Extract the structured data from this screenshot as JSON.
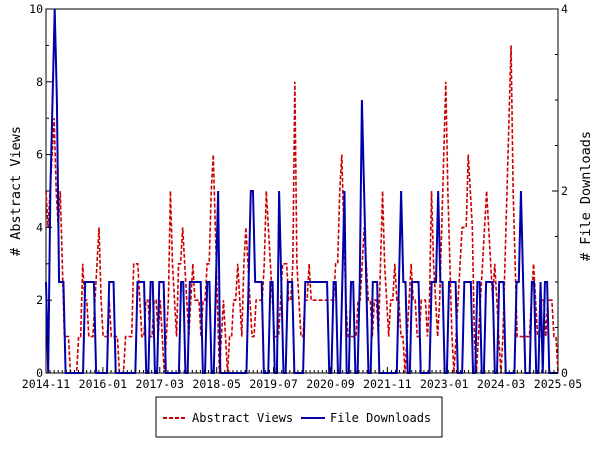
{
  "chart_data": {
    "type": "line",
    "x_tick_labels": [
      "2014-11",
      "2016-01",
      "2017-03",
      "2018-05",
      "2019-07",
      "2020-09",
      "2021-11",
      "2023-01",
      "2024-03",
      "2025-05"
    ],
    "xlim": [
      "2014-11",
      "2025-05"
    ],
    "ylabel_left": "# Abstract Views",
    "ylabel_right": "# File Downloads",
    "ylim_left": [
      0,
      10
    ],
    "ylim_right": [
      0,
      4
    ],
    "y_ticks_left": [
      "0",
      "2",
      "4",
      "6",
      "8",
      "10"
    ],
    "y_ticks_right": [
      "0",
      "2",
      "4"
    ],
    "legend_position": "bottom-center",
    "grid": false,
    "series": [
      {
        "name": "Abstract Views",
        "axis": "left",
        "color": "#cc0000",
        "style": "dashed",
        "values": [
          5,
          4,
          5,
          6,
          7,
          5,
          4,
          5,
          3,
          1,
          1,
          1,
          0,
          0,
          0,
          0,
          1,
          1,
          3,
          2,
          2,
          1,
          1,
          1,
          2,
          3,
          4,
          2,
          1,
          1,
          1,
          2,
          1,
          1,
          1,
          1,
          0,
          0,
          0,
          1,
          1,
          1,
          1,
          3,
          3,
          3,
          2,
          1,
          1,
          2,
          2,
          1,
          1,
          2,
          2,
          1,
          2,
          1,
          0,
          1,
          2,
          5,
          3,
          2,
          1,
          3,
          3,
          4,
          3,
          2,
          1,
          2,
          3,
          2,
          2,
          2,
          1,
          2,
          2,
          3,
          3,
          5,
          6,
          4,
          2,
          0,
          1,
          2,
          1,
          0,
          1,
          1,
          2,
          2,
          3,
          2,
          1,
          3,
          4,
          3,
          2,
          1,
          1,
          2,
          2,
          2,
          2,
          3,
          5,
          4,
          3,
          2,
          1,
          1,
          1,
          2,
          3,
          3,
          3,
          2,
          2,
          3,
          8,
          3,
          2,
          1,
          1,
          2,
          2,
          3,
          2,
          2,
          2,
          2,
          2,
          2,
          2,
          2,
          2,
          2,
          2,
          2,
          3,
          3,
          5,
          6,
          4,
          2,
          1,
          1,
          1,
          1,
          1,
          2,
          2,
          3,
          4,
          3,
          2,
          2,
          1,
          2,
          2,
          1,
          3,
          5,
          3,
          2,
          1,
          2,
          2,
          3,
          2,
          2,
          1,
          1,
          0,
          1,
          2,
          3,
          2,
          2,
          1,
          1,
          2,
          2,
          2,
          1,
          2,
          5,
          3,
          2,
          1,
          2,
          4,
          6,
          8,
          5,
          3,
          1,
          0,
          1,
          2,
          3,
          4,
          4,
          4,
          6,
          5,
          4,
          1,
          0,
          1,
          2,
          3,
          4,
          5,
          4,
          3,
          2,
          3,
          2,
          1,
          0,
          1,
          3,
          5,
          7,
          9,
          5,
          3,
          1,
          1,
          1,
          1,
          1,
          1,
          1,
          2,
          3,
          2,
          1,
          1,
          2,
          2,
          1,
          2,
          2,
          2,
          1,
          1,
          0
        ]
      },
      {
        "name": "File Downloads",
        "axis": "right",
        "color": "#0000aa",
        "style": "solid",
        "values": [
          1,
          0,
          2,
          3,
          4,
          3,
          1,
          1,
          1,
          0,
          0,
          0,
          0,
          0,
          0,
          0,
          0,
          0,
          1,
          1,
          1,
          1,
          1,
          0,
          0,
          0,
          0,
          0,
          0,
          1,
          1,
          1,
          0,
          0,
          0,
          0,
          0,
          0,
          0,
          0,
          0,
          0,
          1,
          1,
          1,
          1,
          0,
          0,
          1,
          1,
          0,
          0,
          1,
          1,
          1,
          0,
          0,
          0,
          0,
          0,
          0,
          0,
          1,
          1,
          0,
          0,
          1,
          1,
          1,
          1,
          1,
          1,
          0,
          0,
          1,
          1,
          0,
          0,
          1,
          2,
          0,
          0,
          0,
          0,
          0,
          0,
          0,
          0,
          0,
          0,
          0,
          0,
          0,
          1,
          2,
          2,
          1,
          1,
          1,
          1,
          0,
          0,
          0,
          1,
          1,
          0,
          0,
          2,
          1,
          0,
          0,
          1,
          1,
          1,
          0,
          0,
          0,
          0,
          0,
          1,
          1,
          1,
          1,
          1,
          1,
          1,
          1,
          1,
          1,
          1,
          0,
          0,
          1,
          1,
          0,
          0,
          1,
          2,
          0,
          0,
          1,
          1,
          0,
          0,
          1,
          3,
          2,
          1,
          0,
          0,
          1,
          1,
          1,
          0,
          0,
          0,
          0,
          0,
          0,
          0,
          0,
          0,
          1,
          2,
          1,
          1,
          0,
          0,
          1,
          1,
          1,
          1,
          0,
          0,
          0,
          0,
          0,
          1,
          1,
          1,
          2,
          1,
          1,
          0,
          0,
          1,
          1,
          1,
          1,
          0,
          0,
          0,
          1,
          1,
          1,
          1,
          0,
          0,
          1,
          1,
          0,
          0,
          1,
          1,
          1,
          1,
          0,
          0,
          1,
          1,
          1,
          0,
          0,
          0,
          0,
          0,
          1,
          1,
          2,
          1,
          0,
          0,
          0,
          1,
          1,
          0,
          0,
          1,
          0,
          1,
          1,
          0,
          0,
          0,
          0,
          0
        ]
      }
    ]
  }
}
